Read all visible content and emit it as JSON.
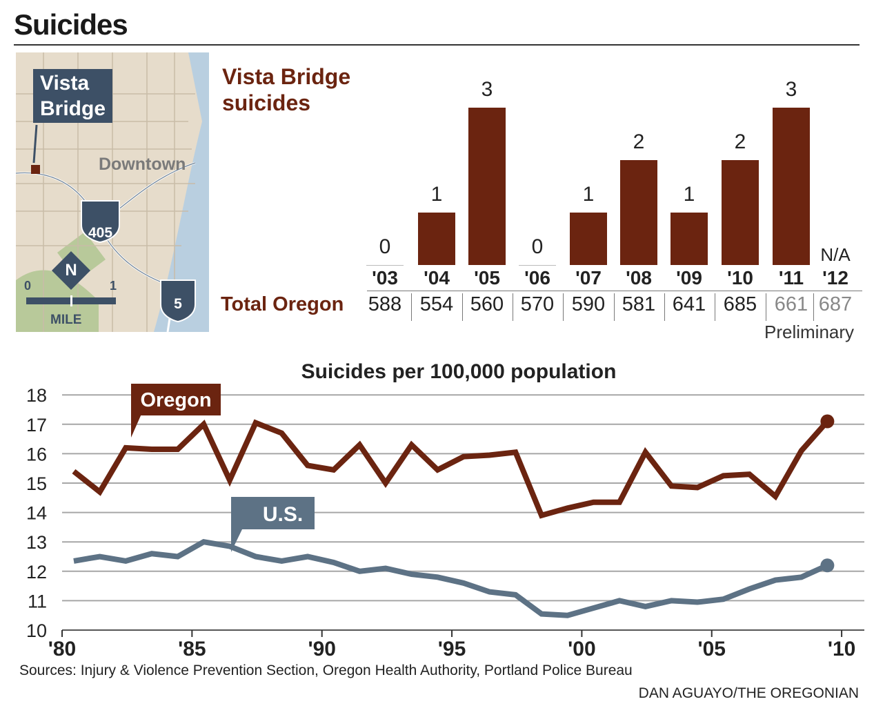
{
  "title": "Suicides",
  "map": {
    "label_line1": "Vista",
    "label_line2": "Bridge",
    "downtown": "Downtown",
    "interstate_405": "405",
    "interstate_5": "5",
    "north": "N",
    "scale_start": "0",
    "scale_end": "1",
    "scale_unit": "MILE"
  },
  "table": {
    "row_label": "Total Oregon",
    "values": [
      "588",
      "554",
      "560",
      "570",
      "590",
      "581",
      "641",
      "685",
      "661",
      "687"
    ],
    "preliminary_flags": [
      false,
      false,
      false,
      false,
      false,
      false,
      false,
      false,
      true,
      true
    ],
    "preliminary_note": "Preliminary"
  },
  "colors": {
    "oregon": "#6b2410",
    "us": "#5d7285",
    "grid": "#a6a6a6"
  },
  "chart_data": [
    {
      "type": "bar",
      "title_line1": "Vista Bridge",
      "title_line2": "suicides",
      "categories": [
        "'03",
        "'04",
        "'05",
        "'06",
        "'07",
        "'08",
        "'09",
        "'10",
        "'11",
        "'12"
      ],
      "values": [
        0,
        1,
        3,
        0,
        1,
        2,
        1,
        2,
        3,
        null
      ],
      "value_labels": [
        "0",
        "1",
        "3",
        "0",
        "1",
        "2",
        "1",
        "2",
        "3",
        "N/A"
      ],
      "ylim": [
        0,
        3
      ]
    },
    {
      "type": "line",
      "title": "Suicides per 100,000 population",
      "x_tick_labels": [
        "'80",
        "'85",
        "'90",
        "'95",
        "'00",
        "'05",
        "'10"
      ],
      "x_ticks": [
        1980,
        1985,
        1990,
        1995,
        2000,
        2005,
        2010
      ],
      "y_ticks": [
        10,
        11,
        12,
        13,
        14,
        15,
        16,
        17,
        18
      ],
      "y_tick_labels": [
        "10",
        "11",
        "12",
        "13",
        "14",
        "15",
        "16",
        "17",
        "18"
      ],
      "xlim": [
        1980,
        2010
      ],
      "ylim": [
        10,
        18
      ],
      "grid": true,
      "x": [
        1980,
        1981,
        1982,
        1983,
        1984,
        1985,
        1986,
        1987,
        1988,
        1989,
        1990,
        1991,
        1992,
        1993,
        1994,
        1995,
        1996,
        1997,
        1998,
        1999,
        2000,
        2001,
        2002,
        2003,
        2004,
        2005,
        2006,
        2007,
        2008,
        2009
      ],
      "series": [
        {
          "name": "Oregon",
          "values": [
            15.4,
            14.7,
            16.2,
            16.15,
            16.15,
            17.0,
            15.1,
            17.05,
            16.7,
            15.6,
            15.45,
            16.3,
            15.0,
            16.3,
            15.45,
            15.9,
            15.95,
            16.05,
            13.9,
            14.15,
            14.35,
            14.35,
            16.05,
            14.9,
            14.85,
            15.25,
            15.3,
            14.55,
            16.1,
            17.1
          ]
        },
        {
          "name": "U.S.",
          "values": [
            12.35,
            12.5,
            12.35,
            12.6,
            12.5,
            13.0,
            12.85,
            12.5,
            12.35,
            12.5,
            12.3,
            12.0,
            12.1,
            11.9,
            11.8,
            11.6,
            11.3,
            11.2,
            10.55,
            10.5,
            10.75,
            11.0,
            10.8,
            11.0,
            10.95,
            11.05,
            11.4,
            11.7,
            11.8,
            12.2
          ]
        }
      ]
    }
  ],
  "footer": {
    "sources": "Sources: Injury & Violence Prevention Section, Oregon Health Authority, Portland Police Bureau",
    "credit": "DAN AGUAYO/THE OREGONIAN"
  }
}
